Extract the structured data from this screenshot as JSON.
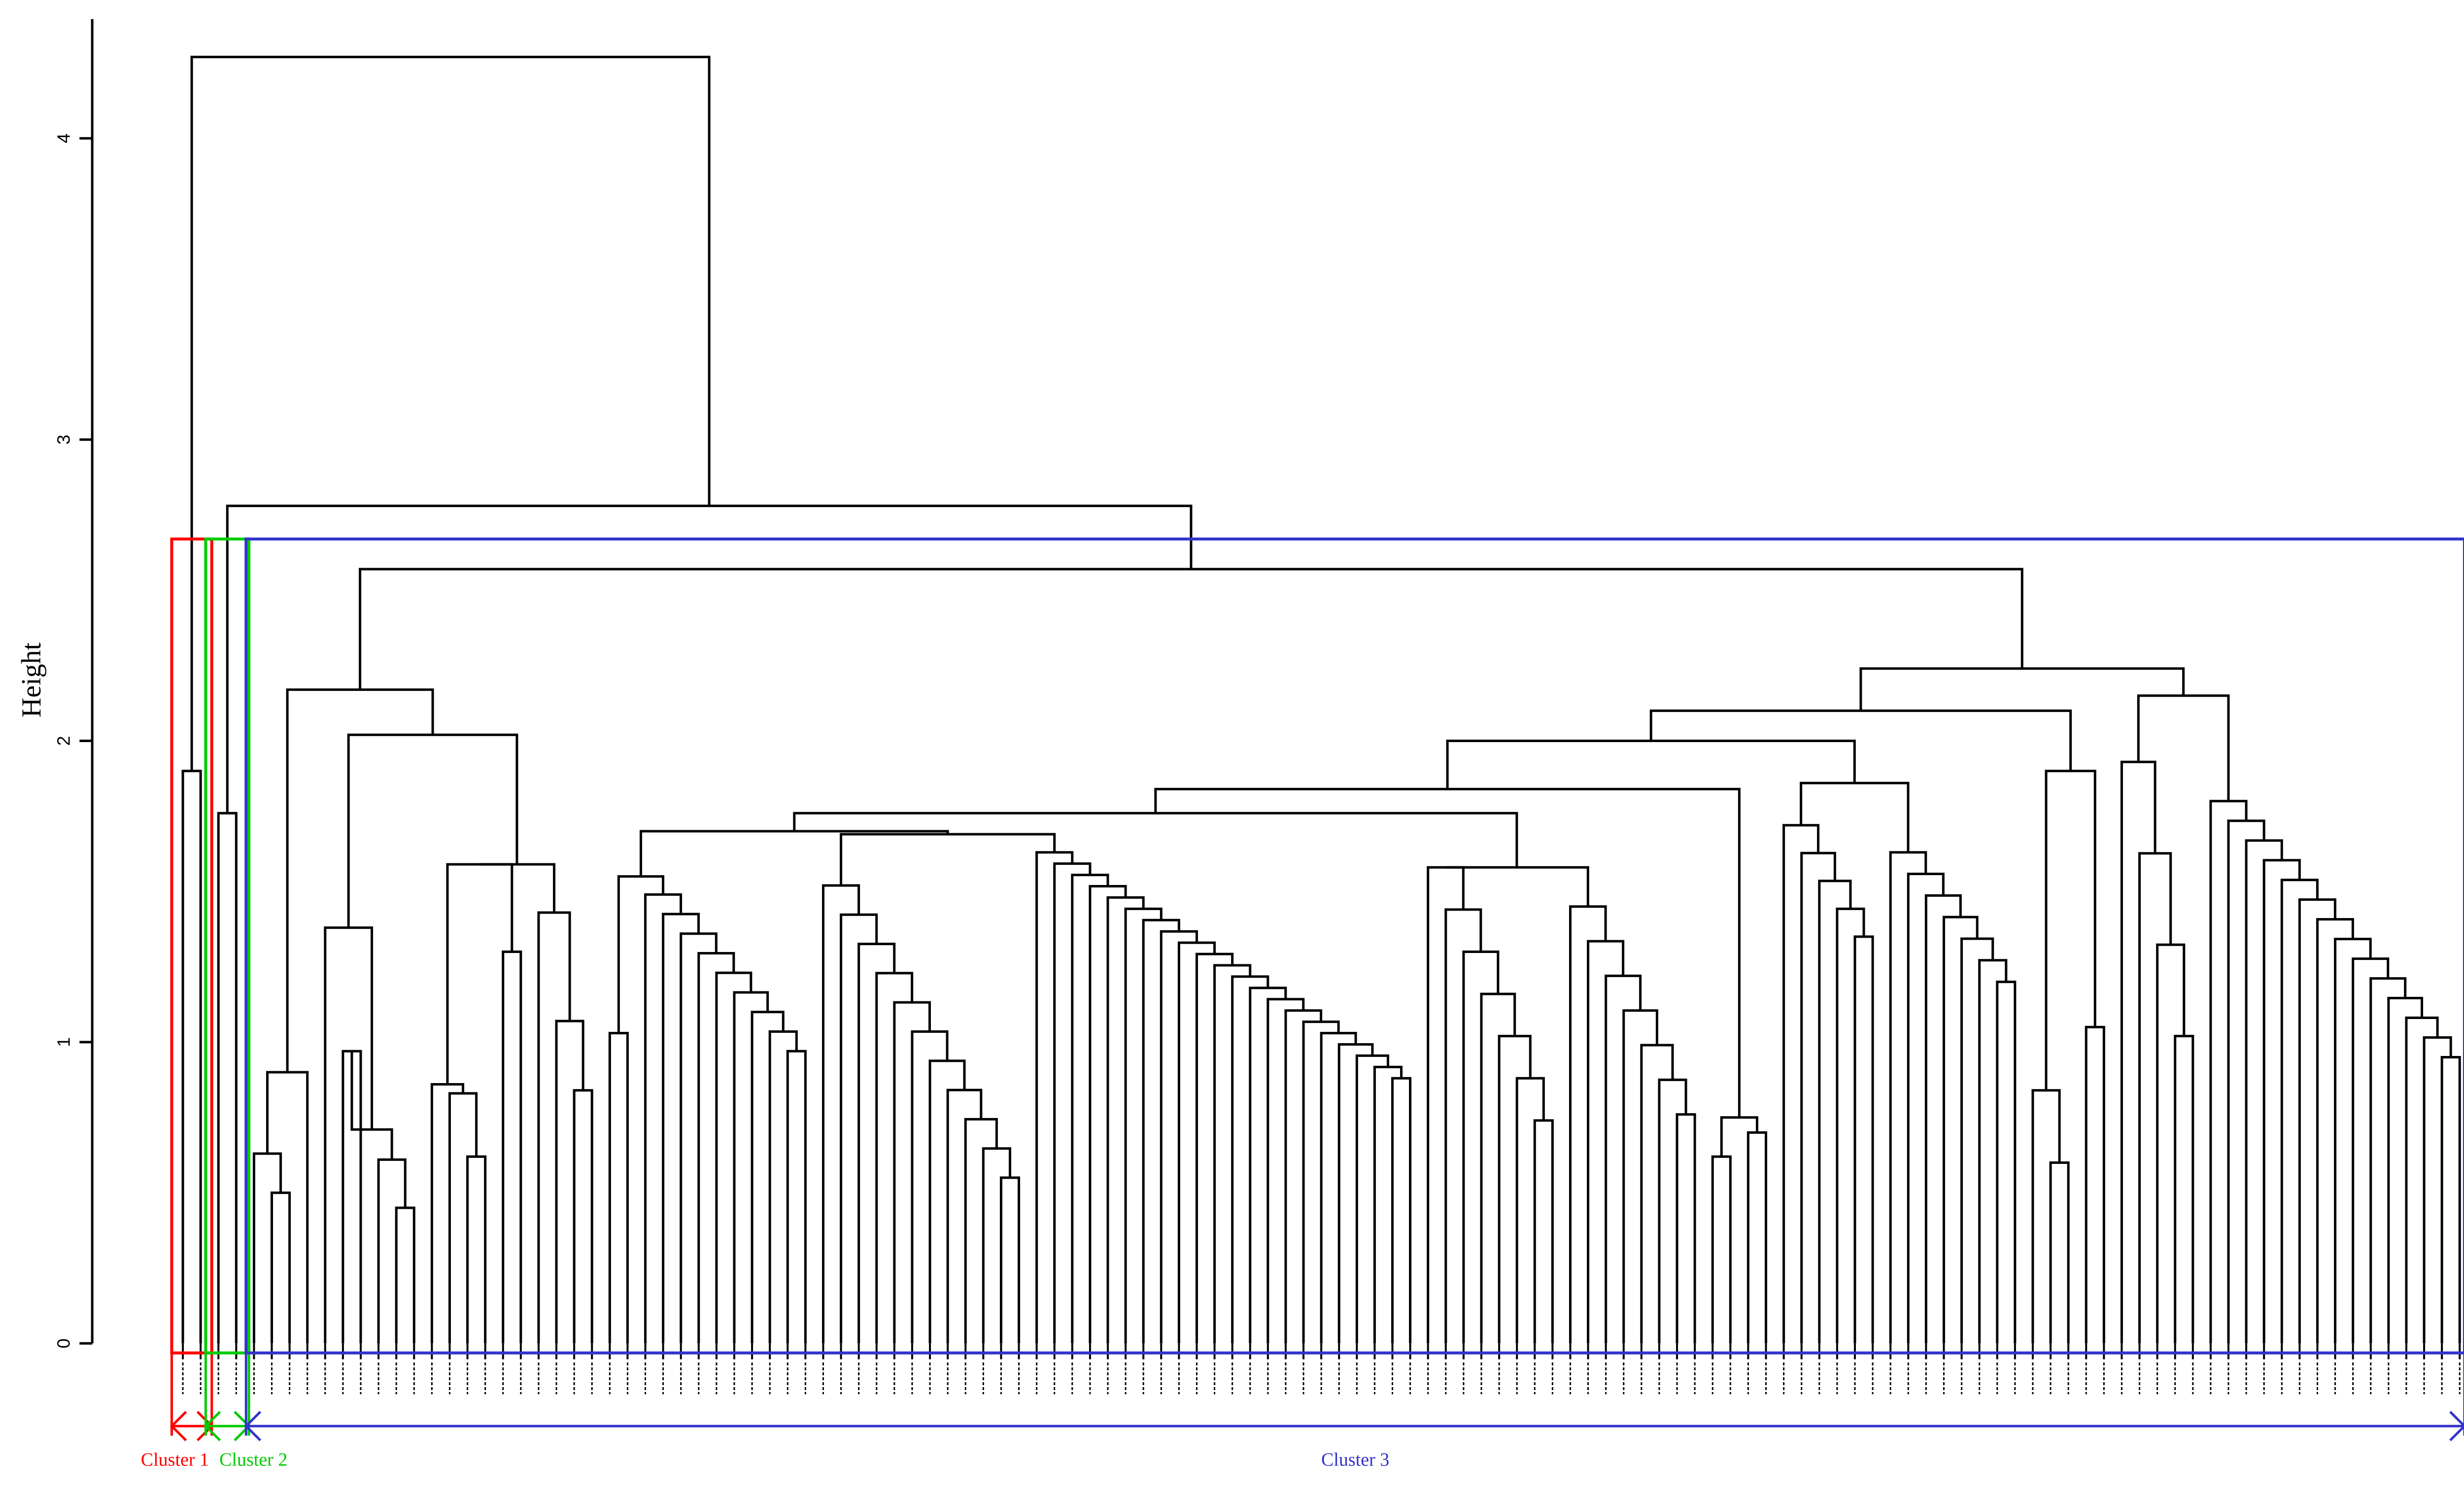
{
  "chart_data": {
    "type": "dendrogram",
    "title": "",
    "xlabel": "",
    "ylabel": "Height",
    "ylim": [
      0,
      4.3
    ],
    "y_ticks": [
      0,
      1,
      2,
      3,
      4
    ],
    "y_tick_labels": [
      "0",
      "1",
      "2",
      "3",
      "4"
    ],
    "leaf_count": 135,
    "leaf_labels_legible": false,
    "major_merges": [
      {
        "height": 4.27,
        "joins": [
          "Cluster 1",
          "Cluster 2 + Cluster 3"
        ]
      },
      {
        "height": 2.78,
        "joins": [
          "Cluster 2",
          "Cluster 3"
        ]
      },
      {
        "height": 2.57,
        "joins": [
          "Cluster 3 left group",
          "Cluster 3 right group"
        ]
      }
    ],
    "clusters": [
      {
        "label": "Cluster 1",
        "color": "#ff0000",
        "leaves": 2,
        "merge_height": 1.9
      },
      {
        "label": "Cluster 2",
        "color": "#00cc00",
        "leaves": 2,
        "merge_height": 1.76
      },
      {
        "label": "Cluster 3",
        "color": "#3333cc",
        "leaves": 131,
        "merge_height": 2.57
      }
    ],
    "grid": false,
    "legend": "none"
  }
}
